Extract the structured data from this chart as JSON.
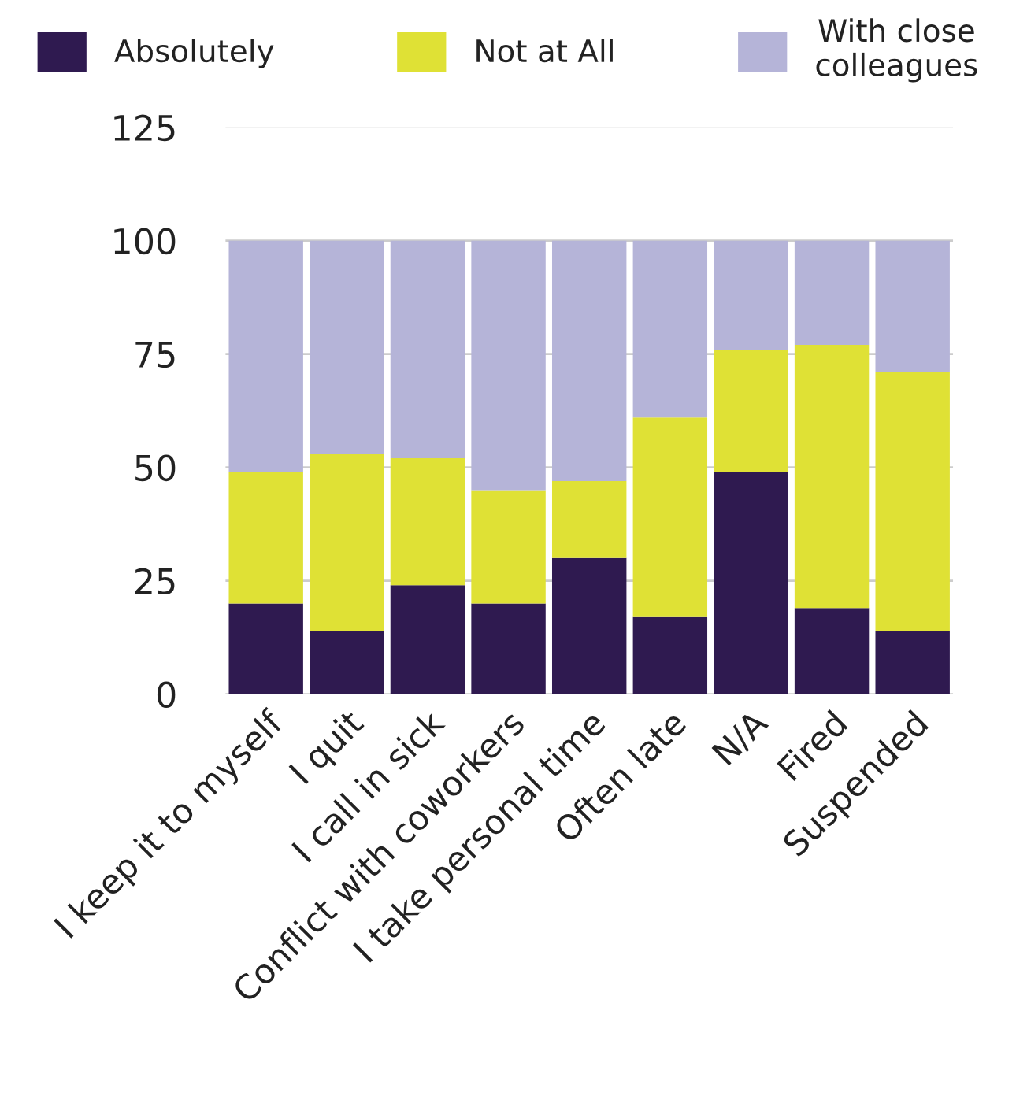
{
  "chart_data": {
    "type": "bar",
    "stacked": true,
    "categories": [
      "I keep it to myself",
      "I quit",
      "I call in sick",
      "Conflict with coworkers",
      "I take personal time",
      "Often late",
      "N/A",
      "Fired",
      "Suspended"
    ],
    "series": [
      {
        "name": "Absolutely",
        "color": "#2f1a50",
        "values": [
          20,
          14,
          24,
          20,
          30,
          17,
          49,
          19,
          14
        ]
      },
      {
        "name": "Not at All",
        "color": "#dfe135",
        "values": [
          29,
          39,
          28,
          25,
          17,
          44,
          27,
          58,
          57
        ]
      },
      {
        "name": "With close\ncolleagues",
        "color": "#b5b4d8",
        "values": [
          51,
          47,
          48,
          55,
          53,
          39,
          24,
          23,
          29
        ]
      }
    ],
    "ylim": [
      0,
      125
    ],
    "yticks": [
      0,
      25,
      50,
      75,
      100,
      125
    ],
    "grid": "y",
    "legend": "top"
  }
}
